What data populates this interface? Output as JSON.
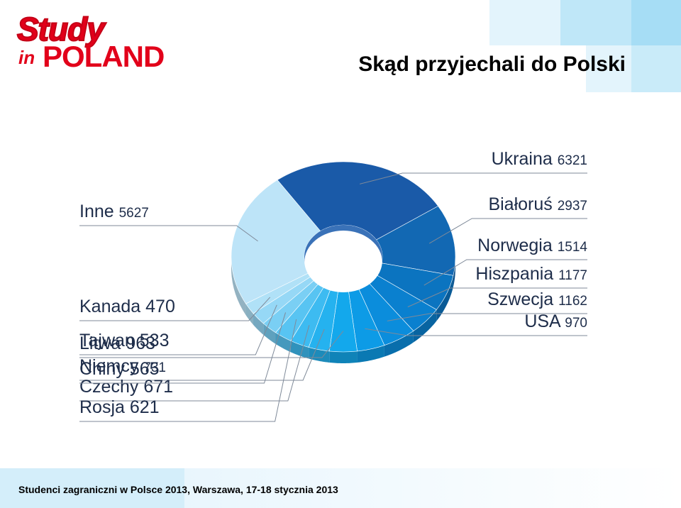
{
  "header": {
    "logo_study": "Study",
    "logo_in": "in",
    "logo_poland": "POLAND",
    "title": "Skąd przyjechali do Polski"
  },
  "footer": {
    "text": "Studenci zagraniczni w Polsce 2013, Warszawa, 17-18 stycznia 2013"
  },
  "colors": {
    "brand_red": "#e2001a",
    "deco_blue_light": "#d8f1fb",
    "deco_blue": "#a9dff5",
    "label_text": "#1e2d4a",
    "leader_line": "#7f8a99"
  },
  "chart_data": {
    "type": "pie",
    "style": "3d-donut",
    "series": [
      {
        "values": [
          {
            "label": "Ukraina",
            "value": 6321,
            "color": "#1a5aa8"
          },
          {
            "label": "Białoruś",
            "value": 2937,
            "color": "#1268b3"
          },
          {
            "label": "Norwegia",
            "value": 1514,
            "color": "#0b74c0"
          },
          {
            "label": "Hiszpania",
            "value": 1177,
            "color": "#0a80cf"
          },
          {
            "label": "Szwecja",
            "value": 1162,
            "color": "#0b8ddc"
          },
          {
            "label": "USA",
            "value": 970,
            "color": "#0d9be6"
          },
          {
            "label": "Litwa",
            "value": 963,
            "color": "#13a8ec"
          },
          {
            "label": "Niemcy",
            "value": 731,
            "color": "#25b2ef"
          },
          {
            "label": "Czechy",
            "value": 671,
            "color": "#3dbbf1"
          },
          {
            "label": "Rosja",
            "value": 621,
            "color": "#58c4f2"
          },
          {
            "label": "Chiny",
            "value": 565,
            "color": "#7acff4"
          },
          {
            "label": "Tajwan",
            "value": 533,
            "color": "#96d8f6"
          },
          {
            "label": "Kanada",
            "value": 470,
            "color": "#b0e1f7"
          },
          {
            "label": "Inne",
            "value": 5627,
            "color": "#bde4f8"
          }
        ]
      }
    ],
    "legend": "none",
    "data_labels": "leader-lines"
  }
}
